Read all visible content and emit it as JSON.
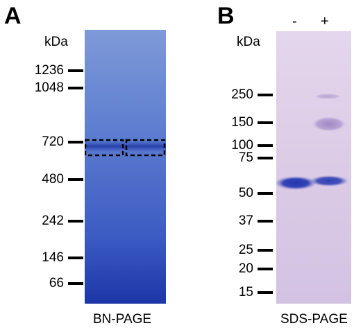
{
  "figure": {
    "panel_a": {
      "letter": "A",
      "unit_label": "kDa",
      "markers": [
        {
          "label": "1236"
        },
        {
          "label": "1048"
        },
        {
          "label": "720"
        },
        {
          "label": "480"
        },
        {
          "label": "242"
        },
        {
          "label": "146"
        },
        {
          "label": "66"
        }
      ],
      "gel_title": "BN-PAGE",
      "gel_color": "#3f5fc4"
    },
    "panel_b": {
      "letter": "B",
      "unit_label": "kDa",
      "lanes": [
        {
          "label": "-"
        },
        {
          "label": "+"
        }
      ],
      "markers": [
        {
          "label": "250"
        },
        {
          "label": "150"
        },
        {
          "label": "100"
        },
        {
          "label": "75"
        },
        {
          "label": "50"
        },
        {
          "label": "37"
        },
        {
          "label": "25"
        },
        {
          "label": "20"
        },
        {
          "label": "15"
        }
      ],
      "gel_title": "SDS-PAGE",
      "gel_color": "#d9c9e6"
    }
  }
}
